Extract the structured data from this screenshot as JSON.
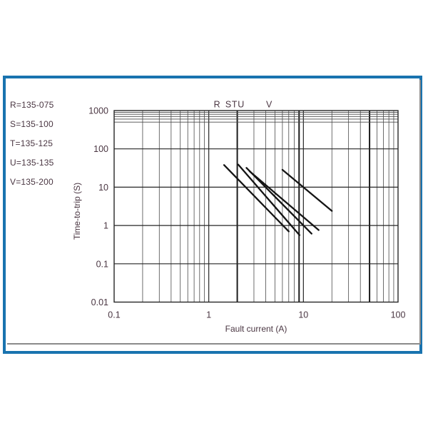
{
  "panel": {
    "border_color": "#1973af",
    "shadow_color": "#8a8a8a"
  },
  "colors": {
    "text": "#4a3642",
    "grid_minor": "#4a4a4a",
    "grid_major": "#262626",
    "grid_emphasis": "#1c1c1c",
    "curve": "#141414",
    "plot_border": "#262626"
  },
  "legend": {
    "items": [
      {
        "key": "R",
        "part": "135-075",
        "text": "R=135-075"
      },
      {
        "key": "S",
        "part": "135-100",
        "text": "S=135-100"
      },
      {
        "key": "T",
        "part": "135-125",
        "text": "T=135-125"
      },
      {
        "key": "U",
        "part": "135-135",
        "text": "U=135-135"
      },
      {
        "key": "V",
        "part": "135-200",
        "text": "V=135-200"
      }
    ]
  },
  "chart_data": {
    "type": "line",
    "title": "",
    "xlabel": "Fault current (A)",
    "ylabel": "Time-to-trip (S)",
    "x_scale": "log",
    "y_scale": "log",
    "xlim": [
      0.1,
      100
    ],
    "ylim": [
      0.01,
      1000
    ],
    "grid": true,
    "x_ticks": [
      {
        "v": 0.1,
        "label": "0.1"
      },
      {
        "v": 1,
        "label": "1"
      },
      {
        "v": 10,
        "label": "10"
      },
      {
        "v": 100,
        "label": "100"
      }
    ],
    "y_ticks": [
      {
        "v": 1000,
        "label": "1000"
      },
      {
        "v": 100,
        "label": "100"
      },
      {
        "v": 10,
        "label": "10"
      },
      {
        "v": 1,
        "label": "1"
      },
      {
        "v": 0.1,
        "label": "0.1"
      },
      {
        "v": 0.01,
        "label": "0.01"
      }
    ],
    "y_minor_gridlines": [
      900,
      800,
      700,
      600,
      500
    ],
    "emphasized_x_values": [
      2,
      9,
      50
    ],
    "curve_labels": [
      {
        "label": "R",
        "at_amps": 1.22
      },
      {
        "label": "S",
        "at_amps": 1.61
      },
      {
        "label": "T",
        "at_amps": 1.87
      },
      {
        "label": "U",
        "at_amps": 2.19
      },
      {
        "label": "V",
        "at_amps": 4.34
      }
    ],
    "series": [
      {
        "name": "R (135-075)",
        "points": [
          [
            1.45,
            38
          ],
          [
            7.0,
            0.7
          ]
        ]
      },
      {
        "name": "S (135-100)",
        "points": [
          [
            2.05,
            39
          ],
          [
            9.1,
            0.56
          ]
        ]
      },
      {
        "name": "T (135-125)",
        "points": [
          [
            2.5,
            32
          ],
          [
            12.2,
            0.61
          ]
        ]
      },
      {
        "name": "U (135-135)",
        "points": [
          [
            2.7,
            26
          ],
          [
            14.5,
            0.76
          ]
        ]
      },
      {
        "name": "V (135-200)",
        "points": [
          [
            6.0,
            28.5
          ],
          [
            20.0,
            2.4
          ]
        ]
      }
    ]
  }
}
